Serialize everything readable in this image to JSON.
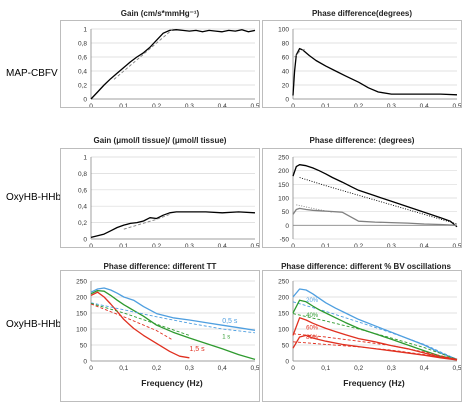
{
  "rows": [
    {
      "label": "MAP-CBFV"
    },
    {
      "label": "OxyHB-HHb"
    },
    {
      "label": "OxyHB-HHb"
    }
  ],
  "colors": {
    "black": "#000000",
    "gray": "#808080",
    "blue": "#4f9fe0",
    "green": "#2e9a2e",
    "red": "#e03020"
  },
  "chart_data": [
    {
      "id": "gain_map",
      "type": "line",
      "title": "Gain (cm/s*mmHg⁻¹)",
      "xlim": [
        0,
        0.5
      ],
      "ylim": [
        0,
        1
      ],
      "xticks": [
        "0",
        "0,1",
        "0,2",
        "0,3",
        "0,4",
        "0,5"
      ],
      "yticks": [
        "0",
        "0,2",
        "0,4",
        "0,6",
        "0,8",
        "1"
      ],
      "series": [
        {
          "color": "#000000",
          "style": "solid",
          "x": [
            0,
            0.01,
            0.02,
            0.04,
            0.06,
            0.08,
            0.1,
            0.12,
            0.14,
            0.16,
            0.18,
            0.2,
            0.22,
            0.24,
            0.26,
            0.28,
            0.3,
            0.32,
            0.34,
            0.36,
            0.38,
            0.4,
            0.42,
            0.44,
            0.46,
            0.48,
            0.5
          ],
          "y": [
            0,
            0.05,
            0.1,
            0.2,
            0.29,
            0.37,
            0.45,
            0.53,
            0.6,
            0.66,
            0.74,
            0.84,
            0.94,
            0.98,
            0.99,
            0.98,
            0.97,
            0.98,
            0.96,
            0.98,
            0.97,
            0.96,
            0.98,
            0.97,
            0.99,
            0.96,
            0.98
          ]
        },
        {
          "color": "#808080",
          "style": "dashed",
          "x": [
            0.07,
            0.12,
            0.17,
            0.22,
            0.25
          ],
          "y": [
            0.28,
            0.48,
            0.68,
            0.88,
            1.0
          ]
        }
      ]
    },
    {
      "id": "phase_map",
      "type": "line",
      "title": "Phase difference(degrees)",
      "xlim": [
        0,
        0.5
      ],
      "ylim": [
        0,
        100
      ],
      "xticks": [
        "0",
        "0,1",
        "0,2",
        "0,3",
        "0,4",
        "0,5"
      ],
      "yticks": [
        "0",
        "20",
        "40",
        "60",
        "80",
        "100"
      ],
      "series": [
        {
          "color": "#000000",
          "style": "solid",
          "x": [
            0,
            0.005,
            0.01,
            0.02,
            0.03,
            0.05,
            0.07,
            0.1,
            0.13,
            0.16,
            0.2,
            0.23,
            0.26,
            0.3,
            0.35,
            0.4,
            0.45,
            0.5
          ],
          "y": [
            5,
            40,
            63,
            72,
            70,
            62,
            55,
            47,
            40,
            33,
            24,
            16,
            10,
            7,
            7,
            7,
            7,
            6
          ]
        },
        {
          "color": "#808080",
          "style": "dashed",
          "x": [
            0.005,
            0.02,
            0.04
          ],
          "y": [
            60,
            68,
            72
          ]
        }
      ]
    },
    {
      "id": "gain_oxy",
      "type": "line",
      "title": "Gain (μmol/l tissue)/ (μmol/l tissue)",
      "xlim": [
        0,
        0.5
      ],
      "ylim": [
        0,
        1
      ],
      "xticks": [
        "0",
        "0,1",
        "0,2",
        "0,3",
        "0,4",
        "0,5"
      ],
      "yticks": [
        "0",
        "0,2",
        "0,4",
        "0,6",
        "0,8",
        "1"
      ],
      "series": [
        {
          "color": "#000000",
          "style": "solid",
          "x": [
            0,
            0.02,
            0.04,
            0.06,
            0.08,
            0.1,
            0.12,
            0.14,
            0.16,
            0.18,
            0.2,
            0.22,
            0.24,
            0.26,
            0.3,
            0.35,
            0.4,
            0.45,
            0.5
          ],
          "y": [
            0.02,
            0.04,
            0.06,
            0.1,
            0.14,
            0.17,
            0.19,
            0.2,
            0.22,
            0.26,
            0.25,
            0.29,
            0.32,
            0.33,
            0.33,
            0.33,
            0.32,
            0.33,
            0.32
          ]
        },
        {
          "color": "#808080",
          "style": "dashed",
          "x": [
            0.1,
            0.15,
            0.2,
            0.24
          ],
          "y": [
            0.12,
            0.18,
            0.24,
            0.3
          ]
        }
      ]
    },
    {
      "id": "phase_oxy",
      "type": "line",
      "title": "Phase difference: (degrees)",
      "xlim": [
        0,
        0.5
      ],
      "ylim": [
        -50,
        250
      ],
      "xticks": [
        "0",
        "0,1",
        "0,2",
        "0,3",
        "0,4",
        "0,5"
      ],
      "yticks": [
        "-50",
        "0",
        "50",
        "100",
        "150",
        "200",
        "250"
      ],
      "series": [
        {
          "color": "#000000",
          "style": "solid",
          "x": [
            0,
            0.01,
            0.02,
            0.04,
            0.06,
            0.08,
            0.1,
            0.12,
            0.15,
            0.18,
            0.2,
            0.25,
            0.3,
            0.35,
            0.4,
            0.45,
            0.48,
            0.5
          ],
          "y": [
            180,
            215,
            222,
            218,
            210,
            200,
            188,
            175,
            158,
            140,
            128,
            108,
            88,
            68,
            48,
            28,
            15,
            -5
          ]
        },
        {
          "color": "#000000",
          "style": "dotted",
          "x": [
            0.02,
            0.1,
            0.2,
            0.3,
            0.4,
            0.5
          ],
          "y": [
            175,
            145,
            110,
            75,
            40,
            5
          ]
        },
        {
          "color": "#808080",
          "style": "solid",
          "x": [
            0,
            0.01,
            0.02,
            0.04,
            0.06,
            0.1,
            0.15,
            0.2,
            0.25,
            0.3,
            0.35,
            0.4,
            0.45,
            0.5
          ],
          "y": [
            40,
            58,
            62,
            58,
            55,
            52,
            48,
            15,
            12,
            10,
            8,
            5,
            3,
            0
          ]
        },
        {
          "color": "#808080",
          "style": "dotted",
          "x": [
            0.01,
            0.06,
            0.12
          ],
          "y": [
            75,
            62,
            48
          ]
        }
      ]
    },
    {
      "id": "phase_tt",
      "type": "line",
      "title": "Phase difference:  different TT",
      "xlim": [
        0,
        0.5
      ],
      "ylim": [
        0,
        250
      ],
      "xticks": [
        "0",
        "0,1",
        "0,2",
        "0,3",
        "0,4",
        "0,5"
      ],
      "yticks": [
        "0",
        "50",
        "100",
        "150",
        "200",
        "250"
      ],
      "xlabel": "Frequency (Hz)",
      "annotations": [
        {
          "text": "0,5 s",
          "x": 0.4,
          "y": 118,
          "color": "#4f9fe0"
        },
        {
          "text": "1 s",
          "x": 0.4,
          "y": 70,
          "color": "#2e9a2e"
        },
        {
          "text": "1,5 s",
          "x": 0.3,
          "y": 32,
          "color": "#e03020"
        }
      ],
      "series": [
        {
          "name": "0,5 s",
          "color": "#4f9fe0",
          "style": "solid",
          "x": [
            0,
            0.02,
            0.04,
            0.06,
            0.08,
            0.1,
            0.13,
            0.16,
            0.2,
            0.25,
            0.3,
            0.35,
            0.4,
            0.45,
            0.5
          ],
          "y": [
            215,
            225,
            228,
            222,
            212,
            200,
            190,
            170,
            148,
            135,
            128,
            120,
            112,
            104,
            96
          ]
        },
        {
          "name": "1 s",
          "color": "#2e9a2e",
          "style": "solid",
          "x": [
            0,
            0.02,
            0.04,
            0.06,
            0.08,
            0.1,
            0.13,
            0.16,
            0.2,
            0.25,
            0.3,
            0.35,
            0.4,
            0.45,
            0.5
          ],
          "y": [
            210,
            220,
            218,
            205,
            190,
            176,
            158,
            140,
            112,
            90,
            72,
            55,
            38,
            20,
            5
          ]
        },
        {
          "name": "1,5 s",
          "color": "#e03020",
          "style": "solid",
          "x": [
            0,
            0.02,
            0.04,
            0.06,
            0.08,
            0.1,
            0.13,
            0.16,
            0.2,
            0.24,
            0.27,
            0.3
          ],
          "y": [
            205,
            215,
            200,
            178,
            155,
            130,
            102,
            80,
            55,
            30,
            15,
            10
          ]
        },
        {
          "color": "#4f9fe0",
          "style": "dashed",
          "x": [
            0,
            0.1,
            0.2,
            0.3,
            0.4,
            0.5
          ],
          "y": [
            182,
            160,
            138,
            118,
            100,
            88
          ]
        },
        {
          "color": "#2e9a2e",
          "style": "dashed",
          "x": [
            0,
            0.1,
            0.2,
            0.3
          ],
          "y": [
            180,
            150,
            115,
            80
          ]
        },
        {
          "color": "#e03020",
          "style": "dashed",
          "x": [
            0,
            0.1,
            0.2,
            0.25
          ],
          "y": [
            178,
            138,
            95,
            65
          ]
        }
      ]
    },
    {
      "id": "phase_bv",
      "type": "line",
      "title": "Phase difference: different % BV oscillations",
      "xlim": [
        0,
        0.5
      ],
      "ylim": [
        0,
        250
      ],
      "xticks": [
        "0",
        "0,1",
        "0,2",
        "0,3",
        "0,4",
        "0,5"
      ],
      "yticks": [
        "0",
        "50",
        "100",
        "150",
        "200",
        "250"
      ],
      "xlabel": "Frequency (Hz)",
      "annotations": [
        {
          "text": "20%",
          "x": 0.04,
          "y": 185,
          "color": "#4f9fe0"
        },
        {
          "text": "40%",
          "x": 0.04,
          "y": 138,
          "color": "#2e9a2e"
        },
        {
          "text": "60%",
          "x": 0.04,
          "y": 98,
          "color": "#e03020"
        },
        {
          "text": "80%",
          "x": 0.04,
          "y": 68,
          "color": "#e03020"
        }
      ],
      "series": [
        {
          "color": "#4f9fe0",
          "style": "solid",
          "x": [
            0,
            0.02,
            0.04,
            0.06,
            0.08,
            0.1,
            0.13,
            0.16,
            0.2,
            0.25,
            0.3,
            0.35,
            0.4,
            0.45,
            0.5
          ],
          "y": [
            200,
            225,
            222,
            210,
            196,
            182,
            165,
            150,
            130,
            110,
            90,
            70,
            50,
            25,
            5
          ]
        },
        {
          "color": "#4f9fe0",
          "style": "dashed",
          "x": [
            0,
            0.1,
            0.2,
            0.3,
            0.4,
            0.5
          ],
          "y": [
            185,
            155,
            122,
            88,
            52,
            5
          ]
        },
        {
          "color": "#2e9a2e",
          "style": "solid",
          "x": [
            0,
            0.02,
            0.04,
            0.06,
            0.08,
            0.1,
            0.13,
            0.16,
            0.2,
            0.25,
            0.3,
            0.35,
            0.4,
            0.45,
            0.5
          ],
          "y": [
            150,
            190,
            185,
            172,
            160,
            150,
            135,
            120,
            102,
            85,
            68,
            50,
            32,
            15,
            5
          ]
        },
        {
          "color": "#2e9a2e",
          "style": "dashed",
          "x": [
            0,
            0.1,
            0.2,
            0.3,
            0.4,
            0.5
          ],
          "y": [
            148,
            125,
            100,
            72,
            42,
            5
          ]
        },
        {
          "color": "#e03020",
          "style": "solid",
          "x": [
            0,
            0.02,
            0.04,
            0.06,
            0.08,
            0.1,
            0.13,
            0.16,
            0.2,
            0.25,
            0.3,
            0.35,
            0.4,
            0.45,
            0.5
          ],
          "y": [
            80,
            135,
            128,
            118,
            110,
            102,
            92,
            82,
            70,
            60,
            48,
            38,
            25,
            12,
            5
          ]
        },
        {
          "color": "#e03020",
          "style": "dashed",
          "x": [
            0,
            0.1,
            0.2,
            0.3,
            0.4,
            0.5
          ],
          "y": [
            85,
            75,
            62,
            48,
            28,
            5
          ]
        },
        {
          "color": "#e03020",
          "style": "solid",
          "x": [
            0,
            0.02,
            0.04,
            0.06,
            0.1,
            0.15,
            0.2,
            0.3,
            0.4,
            0.45,
            0.5
          ],
          "y": [
            40,
            75,
            80,
            72,
            62,
            52,
            45,
            32,
            18,
            10,
            3
          ]
        },
        {
          "color": "#e03020",
          "style": "dashed",
          "x": [
            0,
            0.1,
            0.2,
            0.3,
            0.4,
            0.5
          ],
          "y": [
            60,
            52,
            44,
            34,
            20,
            3
          ]
        }
      ]
    }
  ]
}
